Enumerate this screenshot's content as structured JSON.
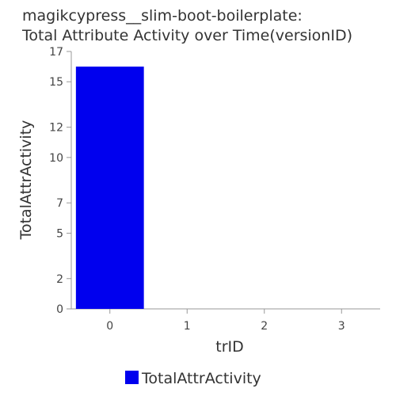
{
  "chart_data": {
    "type": "bar",
    "title_line1": "magikcypress__slim-boot-boilerplate:",
    "title_line2": "Total Attribute Activity over Time(versionID)",
    "xlabel": "trID",
    "ylabel": "TotalAttrActivity",
    "categories": [
      "0",
      "1",
      "2",
      "3"
    ],
    "series": [
      {
        "name": "TotalAttrActivity",
        "values": [
          16,
          0,
          0,
          0
        ],
        "color": "#0000ee"
      }
    ],
    "ylim": [
      0,
      17
    ],
    "yticks": [
      0,
      2,
      5,
      7,
      10,
      12,
      15,
      17
    ],
    "grid": false,
    "legend_position": "bottom"
  }
}
